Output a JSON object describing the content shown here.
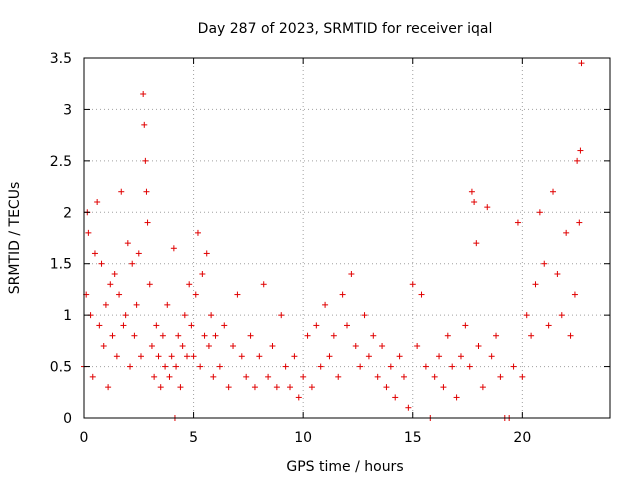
{
  "chart_data": {
    "type": "scatter",
    "title": "Day 287 of 2023, SRMTID for receiver iqal",
    "xlabel": "GPS time / hours",
    "ylabel": "SRMTID / TECUs",
    "xlim": [
      0,
      24
    ],
    "ylim": [
      0,
      3.5
    ],
    "xticks": [
      0,
      5,
      10,
      15,
      20
    ],
    "xtick_labels": [
      "0",
      "5",
      "10",
      "15",
      "20"
    ],
    "yticks": [
      0,
      0.5,
      1,
      1.5,
      2,
      2.5,
      3,
      3.5
    ],
    "ytick_labels": [
      "0",
      "0.5",
      "1",
      "1.5",
      "2",
      "2.5",
      "3",
      "3.5"
    ],
    "grid": true,
    "marker": "+",
    "color": "#e00000",
    "series": [
      {
        "name": "SRMTID",
        "x": [
          0.0,
          0.1,
          0.15,
          0.2,
          0.3,
          0.4,
          0.5,
          0.6,
          0.7,
          0.8,
          0.9,
          1.0,
          1.1,
          1.2,
          1.3,
          1.4,
          1.5,
          1.6,
          1.7,
          1.8,
          1.9,
          2.0,
          2.1,
          2.2,
          2.3,
          2.4,
          2.5,
          2.6,
          2.7,
          2.75,
          2.8,
          2.85,
          2.9,
          3.0,
          3.1,
          3.2,
          3.3,
          3.4,
          3.5,
          3.6,
          3.7,
          3.8,
          3.9,
          4.0,
          4.1,
          4.15,
          4.2,
          4.3,
          4.4,
          4.5,
          4.6,
          4.7,
          4.8,
          4.9,
          5.0,
          5.1,
          5.2,
          5.3,
          5.4,
          5.5,
          5.6,
          5.7,
          5.8,
          5.9,
          6.0,
          6.2,
          6.4,
          6.6,
          6.8,
          7.0,
          7.2,
          7.4,
          7.6,
          7.8,
          8.0,
          8.2,
          8.4,
          8.6,
          8.8,
          9.0,
          9.2,
          9.4,
          9.6,
          9.8,
          10.0,
          10.2,
          10.4,
          10.6,
          10.8,
          11.0,
          11.2,
          11.4,
          11.6,
          11.8,
          12.0,
          12.2,
          12.4,
          12.6,
          12.8,
          13.0,
          13.2,
          13.4,
          13.6,
          13.8,
          14.0,
          14.2,
          14.4,
          14.6,
          14.8,
          15.0,
          15.2,
          15.4,
          15.6,
          15.8,
          16.0,
          16.2,
          16.4,
          16.6,
          16.8,
          17.0,
          17.2,
          17.4,
          17.6,
          17.7,
          17.8,
          17.9,
          18.0,
          18.2,
          18.4,
          18.6,
          18.8,
          19.0,
          19.2,
          19.4,
          19.6,
          19.8,
          20.0,
          20.2,
          20.4,
          20.6,
          20.8,
          21.0,
          21.2,
          21.4,
          21.6,
          21.8,
          22.0,
          22.2,
          22.4,
          22.5,
          22.6,
          22.65,
          22.7
        ],
        "y": [
          0.5,
          1.2,
          2.0,
          1.8,
          1.0,
          0.4,
          1.6,
          2.1,
          0.9,
          1.5,
          0.7,
          1.1,
          0.3,
          1.3,
          0.8,
          1.4,
          0.6,
          1.2,
          2.2,
          0.9,
          1.0,
          1.7,
          0.5,
          1.5,
          0.8,
          1.1,
          1.6,
          0.6,
          3.15,
          2.85,
          2.5,
          2.2,
          1.9,
          1.3,
          0.7,
          0.4,
          0.9,
          0.6,
          0.3,
          0.8,
          0.5,
          1.1,
          0.4,
          0.6,
          1.65,
          0.0,
          0.5,
          0.8,
          0.3,
          0.7,
          1.0,
          0.6,
          1.3,
          0.9,
          0.6,
          1.2,
          1.8,
          0.5,
          1.4,
          0.8,
          1.6,
          0.7,
          1.0,
          0.4,
          0.8,
          0.5,
          0.9,
          0.3,
          0.7,
          1.2,
          0.6,
          0.4,
          0.8,
          0.3,
          0.6,
          1.3,
          0.4,
          0.7,
          0.3,
          1.0,
          0.5,
          0.3,
          0.6,
          0.2,
          0.4,
          0.8,
          0.3,
          0.9,
          0.5,
          1.1,
          0.6,
          0.8,
          0.4,
          1.2,
          0.9,
          1.4,
          0.7,
          0.5,
          1.0,
          0.6,
          0.8,
          0.4,
          0.7,
          0.3,
          0.5,
          0.2,
          0.6,
          0.4,
          0.1,
          1.3,
          0.7,
          1.2,
          0.5,
          0.0,
          0.4,
          0.6,
          0.3,
          0.8,
          0.5,
          0.2,
          0.6,
          0.9,
          0.5,
          2.2,
          2.1,
          1.7,
          0.7,
          0.3,
          2.05,
          0.6,
          0.8,
          0.4,
          0.0,
          0.0,
          0.5,
          1.9,
          0.4,
          1.0,
          0.8,
          1.3,
          2.0,
          1.5,
          0.9,
          2.2,
          1.4,
          1.0,
          1.8,
          0.8,
          1.2,
          2.5,
          1.9,
          2.6,
          3.45
        ]
      }
    ]
  }
}
